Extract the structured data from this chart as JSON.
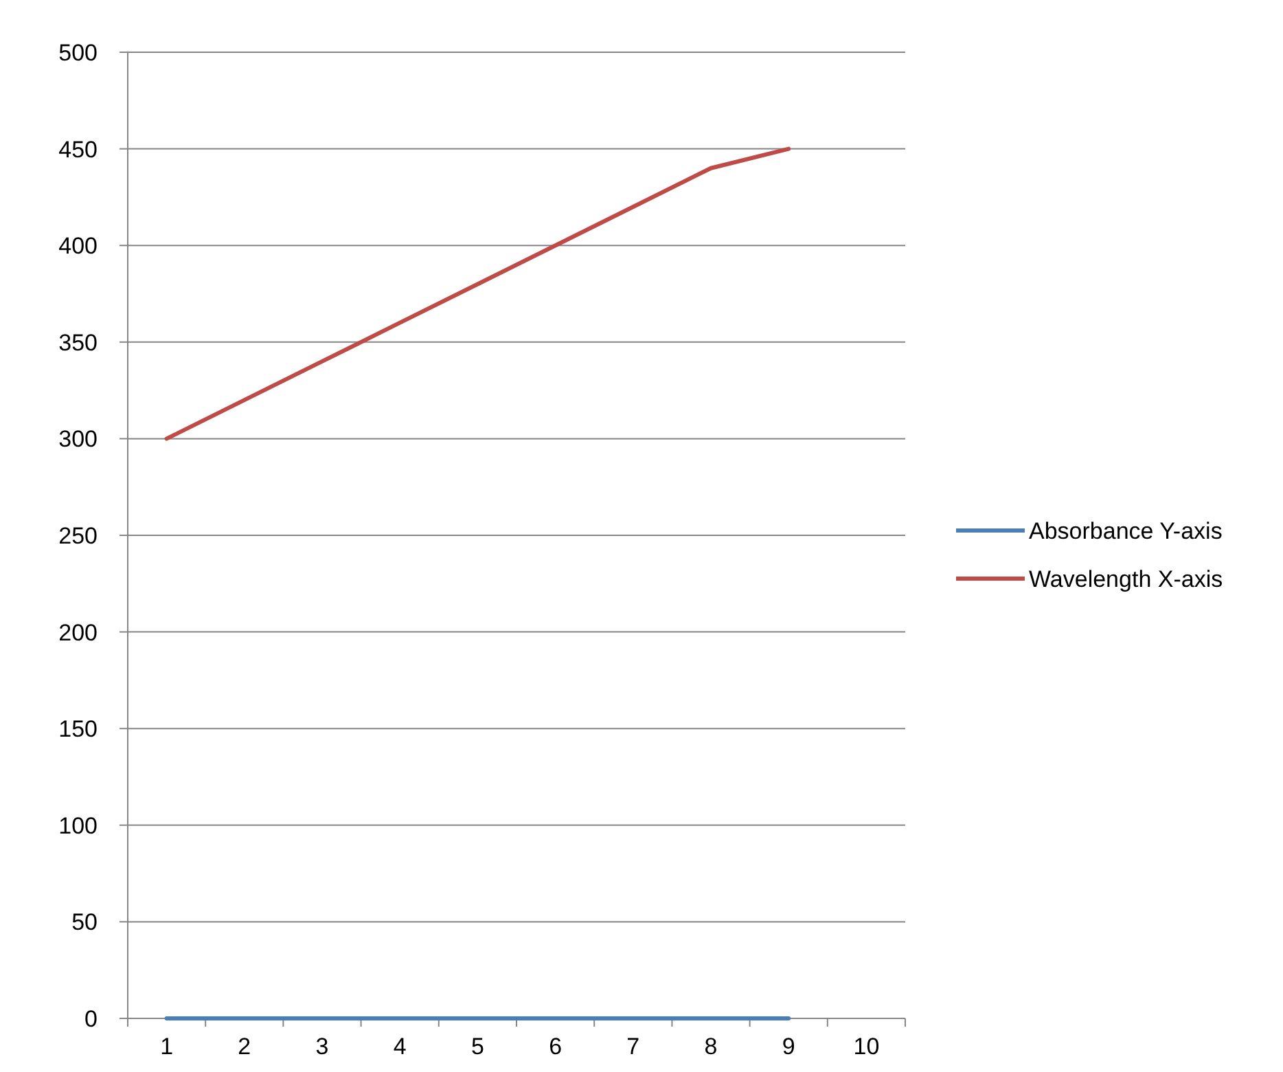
{
  "chart_data": {
    "type": "line",
    "categories": [
      "1",
      "2",
      "3",
      "4",
      "5",
      "6",
      "7",
      "8",
      "9",
      "10"
    ],
    "series": [
      {
        "name": "Absorbance Y-axis",
        "color": "#4a7ebb",
        "values": [
          0,
          0,
          0,
          0,
          0,
          0,
          0,
          0,
          0,
          null
        ]
      },
      {
        "name": "Wavelength X-axis",
        "color": "#be4b48",
        "values": [
          300,
          320,
          340,
          360,
          380,
          400,
          420,
          440,
          450,
          null
        ]
      }
    ],
    "ylim": [
      0,
      500
    ],
    "yticks": [
      0,
      50,
      100,
      150,
      200,
      250,
      300,
      350,
      400,
      450,
      500
    ],
    "grid": "y",
    "legend": "right",
    "marker": "none",
    "line_style": "solid"
  }
}
